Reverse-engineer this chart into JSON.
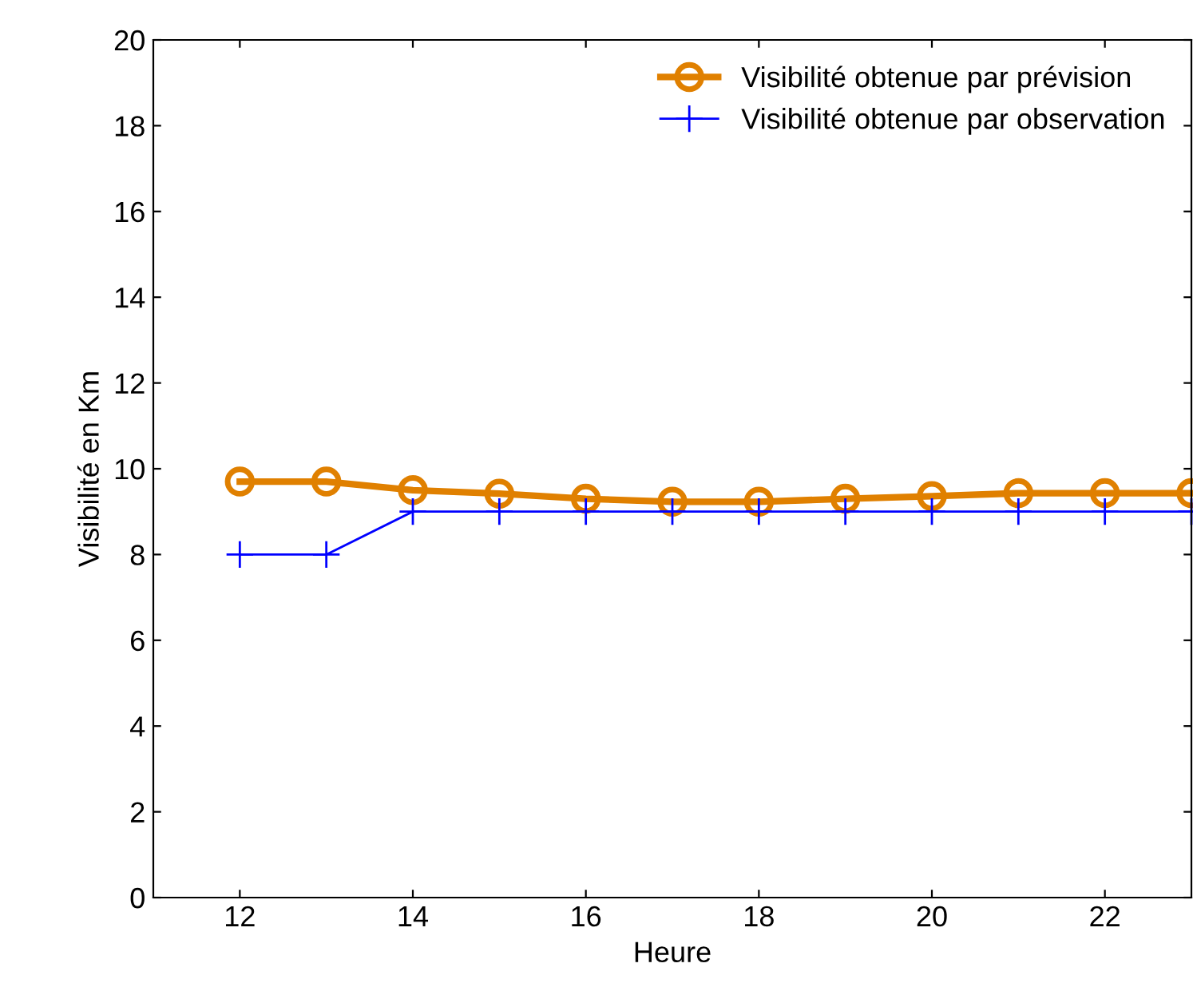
{
  "chart_data": {
    "type": "line",
    "xlabel": "Heure",
    "ylabel": "Visibilité en Km",
    "x": [
      12,
      13,
      14,
      15,
      16,
      17,
      18,
      19,
      20,
      21,
      22,
      23
    ],
    "series": [
      {
        "name": "Visibilité obtenue par prévision",
        "color": "#e08000",
        "marker": "circle",
        "values": [
          9.7,
          9.7,
          9.5,
          9.42,
          9.3,
          9.23,
          9.23,
          9.3,
          9.36,
          9.43,
          9.43,
          9.43
        ]
      },
      {
        "name": "Visibilité obtenue par observation",
        "color": "#0000ff",
        "marker": "cross",
        "values": [
          8,
          8,
          9,
          9,
          9,
          9,
          9,
          9,
          9,
          9,
          9,
          9
        ]
      }
    ],
    "xlim": [
      11,
      23
    ],
    "xticks": [
      12,
      14,
      16,
      18,
      20,
      22
    ],
    "ylim": [
      0,
      20
    ],
    "yticks": [
      0,
      2,
      4,
      6,
      8,
      10,
      12,
      14,
      16,
      18,
      20
    ],
    "grid": false,
    "legend": "top right",
    "line_style": "solid"
  }
}
